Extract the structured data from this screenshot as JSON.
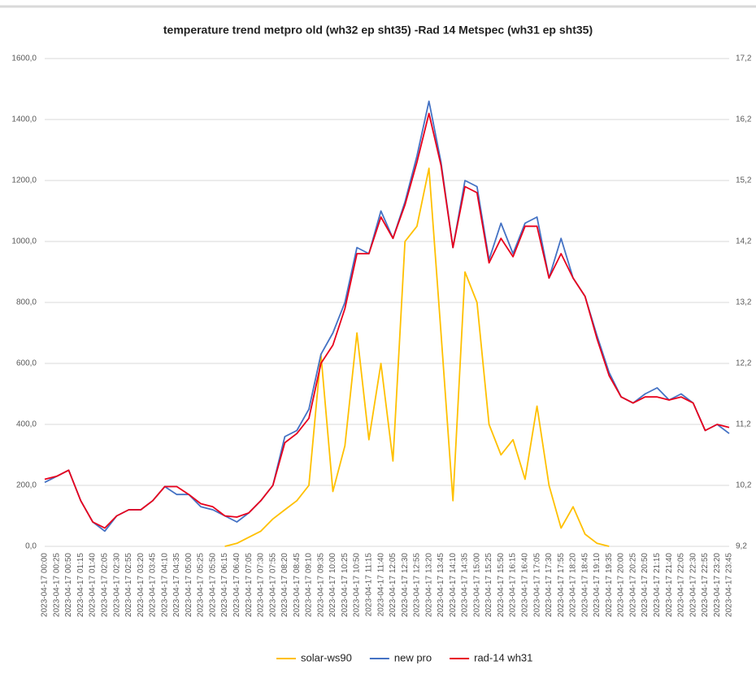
{
  "chart_data": {
    "type": "line",
    "title": "temperature trend metpro old (wh32 ep sht35) -Rad 14 Metspec (wh31 ep sht35)",
    "categories": [
      "2023-04-17 00:00",
      "2023-04-17 00:25",
      "2023-04-17 00:50",
      "2023-04-17 01:15",
      "2023-04-17 01:40",
      "2023-04-17 02:05",
      "2023-04-17 02:30",
      "2023-04-17 02:55",
      "2023-04-17 03:20",
      "2023-04-17 03:45",
      "2023-04-17 04:10",
      "2023-04-17 04:35",
      "2023-04-17 05:00",
      "2023-04-17 05:25",
      "2023-04-17 05:50",
      "2023-04-17 06:15",
      "2023-04-17 06:40",
      "2023-04-17 07:05",
      "2023-04-17 07:30",
      "2023-04-17 07:55",
      "2023-04-17 08:20",
      "2023-04-17 08:45",
      "2023-04-17 09:10",
      "2023-04-17 09:35",
      "2023-04-17 10:00",
      "2023-04-17 10:25",
      "2023-04-17 10:50",
      "2023-04-17 11:15",
      "2023-04-17 11:40",
      "2023-04-17 12:05",
      "2023-04-17 12:30",
      "2023-04-17 12:55",
      "2023-04-17 13:20",
      "2023-04-17 13:45",
      "2023-04-17 14:10",
      "2023-04-17 14:35",
      "2023-04-17 15:00",
      "2023-04-17 15:25",
      "2023-04-17 15:50",
      "2023-04-17 16:15",
      "2023-04-17 16:40",
      "2023-04-17 17:05",
      "2023-04-17 17:30",
      "2023-04-17 17:55",
      "2023-04-17 18:20",
      "2023-04-17 18:45",
      "2023-04-17 19:10",
      "2023-04-17 19:35",
      "2023-04-17 20:00",
      "2023-04-17 20:25",
      "2023-04-17 20:50",
      "2023-04-17 21:15",
      "2023-04-17 21:40",
      "2023-04-17 22:05",
      "2023-04-17 22:30",
      "2023-04-17 22:55",
      "2023-04-17 23:20",
      "2023-04-17 23:45"
    ],
    "series": [
      {
        "name": "solar-ws90",
        "color": "#ffc000",
        "values": [
          null,
          null,
          null,
          null,
          null,
          null,
          null,
          null,
          null,
          null,
          null,
          null,
          null,
          null,
          null,
          0,
          10,
          30,
          50,
          90,
          120,
          150,
          200,
          630,
          180,
          330,
          700,
          350,
          600,
          280,
          1000,
          1050,
          1240,
          700,
          150,
          900,
          800,
          400,
          300,
          350,
          220,
          460,
          200,
          60,
          130,
          40,
          10,
          0,
          null,
          null,
          null,
          null,
          null,
          null,
          null,
          null,
          null,
          null
        ]
      },
      {
        "name": "new pro",
        "color": "#4472c4",
        "axis": "y2",
        "values": [
          10.25,
          10.35,
          10.45,
          9.95,
          9.6,
          9.45,
          9.7,
          9.8,
          9.8,
          9.95,
          10.18,
          10.05,
          10.05,
          9.85,
          9.8,
          9.7,
          9.6,
          9.75,
          9.95,
          10.2,
          11.0,
          11.1,
          11.45,
          12.35,
          12.7,
          13.2,
          14.1,
          14.0,
          14.7,
          14.25,
          14.85,
          15.6,
          16.5,
          15.5,
          14.1,
          15.2,
          15.1,
          13.9,
          14.5,
          14.0,
          14.5,
          14.6,
          13.6,
          14.25,
          13.6,
          13.3,
          12.65,
          12.05,
          11.65,
          11.55,
          11.7,
          11.8,
          11.6,
          11.7,
          11.55,
          11.1,
          11.2,
          11.05
        ]
      },
      {
        "name": "rad-14 wh31",
        "color": "#e8001c",
        "axis": "y2",
        "values": [
          10.3,
          10.35,
          10.45,
          9.95,
          9.6,
          9.5,
          9.7,
          9.8,
          9.8,
          9.95,
          10.18,
          10.18,
          10.05,
          9.9,
          9.85,
          9.7,
          9.68,
          9.75,
          9.95,
          10.2,
          10.9,
          11.05,
          11.3,
          12.2,
          12.5,
          13.1,
          14.0,
          14.0,
          14.6,
          14.25,
          14.8,
          15.5,
          16.3,
          15.45,
          14.1,
          15.1,
          15.0,
          13.85,
          14.25,
          13.95,
          14.45,
          14.45,
          13.6,
          14.0,
          13.6,
          13.3,
          12.6,
          12.0,
          11.65,
          11.55,
          11.65,
          11.65,
          11.6,
          11.65,
          11.55,
          11.1,
          11.2,
          11.15
        ]
      }
    ],
    "ylim": [
      0,
      1600
    ],
    "yticks": [
      {
        "value": 0,
        "label": "0,0"
      },
      {
        "value": 200,
        "label": "200,0"
      },
      {
        "value": 400,
        "label": "400,0"
      },
      {
        "value": 600,
        "label": "600,0"
      },
      {
        "value": 800,
        "label": "800,0"
      },
      {
        "value": 1000,
        "label": "1000,0"
      },
      {
        "value": 1200,
        "label": "1200,0"
      },
      {
        "value": 1400,
        "label": "1400,0"
      },
      {
        "value": 1600,
        "label": "1600,0"
      }
    ],
    "y2lim": [
      9.2,
      17.2
    ],
    "y2ticks": [
      {
        "value": 9.2,
        "label": "9,2"
      },
      {
        "value": 10.2,
        "label": "10,2"
      },
      {
        "value": 11.2,
        "label": "11,2"
      },
      {
        "value": 12.2,
        "label": "12,2"
      },
      {
        "value": 13.2,
        "label": "13,2"
      },
      {
        "value": 14.2,
        "label": "14,2"
      },
      {
        "value": 15.2,
        "label": "15,2"
      },
      {
        "value": 16.2,
        "label": "16,2"
      },
      {
        "value": 17.2,
        "label": "17,2"
      }
    ],
    "grid": true,
    "legend": "bottom"
  }
}
